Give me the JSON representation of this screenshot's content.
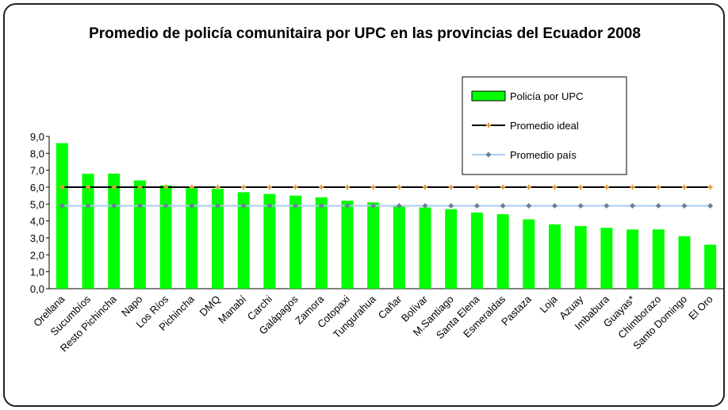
{
  "chart_data": {
    "type": "bar",
    "title": "Promedio de policía comunitaira por UPC en las provincias del Ecuador 2008",
    "categories": [
      "Orellana",
      "Sucumbíos",
      "Resto Pichincha",
      "Napo",
      "Los Ríos",
      "Pichincha",
      "DMQ",
      "Manabí",
      "Carchi",
      "Galápagos",
      "Zamora",
      "Cotopaxi",
      "Tungurahua",
      "Cañar",
      "Bolívar",
      "M.Santiago",
      "Santa Elena",
      "Esmeraldas",
      "Pastaza",
      "Loja",
      "Azuay",
      "Imbabura",
      "Guayas*",
      "Chimborazo",
      "Santo Domingo",
      "El Oro"
    ],
    "series": [
      {
        "name": "Policía por UPC",
        "type": "bar",
        "color": "#00ff00",
        "values": [
          8.6,
          6.8,
          6.8,
          6.4,
          6.1,
          6.0,
          5.9,
          5.7,
          5.6,
          5.5,
          5.4,
          5.2,
          5.1,
          4.9,
          4.8,
          4.7,
          4.5,
          4.4,
          4.1,
          3.8,
          3.7,
          3.6,
          3.5,
          3.5,
          3.1,
          2.6
        ]
      },
      {
        "name": "Promedio ideal",
        "type": "line",
        "color": "#000000",
        "marker": "cross",
        "marker_color": "#e09a3a",
        "values": [
          6,
          6,
          6,
          6,
          6,
          6,
          6,
          6,
          6,
          6,
          6,
          6,
          6,
          6,
          6,
          6,
          6,
          6,
          6,
          6,
          6,
          6,
          6,
          6,
          6,
          6
        ]
      },
      {
        "name": "Promedio país",
        "type": "line",
        "color": "#a8cbf0",
        "marker": "diamond",
        "marker_color": "#6d7f99",
        "values": [
          4.9,
          4.9,
          4.9,
          4.9,
          4.9,
          4.9,
          4.9,
          4.9,
          4.9,
          4.9,
          4.9,
          4.9,
          4.9,
          4.9,
          4.9,
          4.9,
          4.9,
          4.9,
          4.9,
          4.9,
          4.9,
          4.9,
          4.9,
          4.9,
          4.9,
          4.9
        ]
      }
    ],
    "ylim": [
      0,
      9
    ],
    "yticks": [
      {
        "value": 0,
        "label": "0,0"
      },
      {
        "value": 1,
        "label": "1,0"
      },
      {
        "value": 2,
        "label": "2,0"
      },
      {
        "value": 3,
        "label": "3,0"
      },
      {
        "value": 4,
        "label": "4,0"
      },
      {
        "value": 5,
        "label": "5,0"
      },
      {
        "value": 6,
        "label": "6,0"
      },
      {
        "value": 7,
        "label": "7,0"
      },
      {
        "value": 8,
        "label": "8,0"
      },
      {
        "value": 9,
        "label": "9,0"
      }
    ],
    "grid": false,
    "legend": "top-right"
  }
}
